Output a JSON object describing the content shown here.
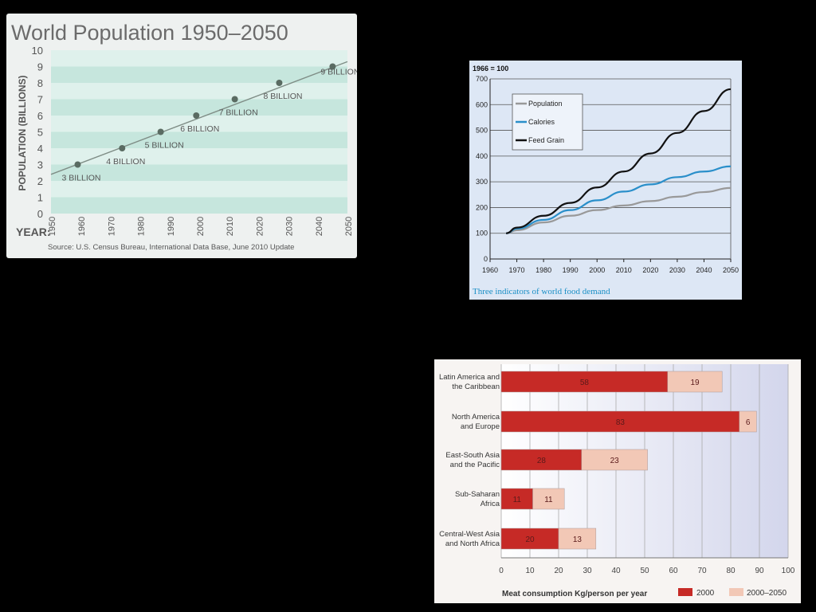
{
  "chart_data": [
    {
      "type": "line",
      "title": "World Population 1950–2050",
      "ylabel": "POPULATION (BILLIONS)",
      "xlabel": "YEAR:",
      "ylim": [
        0,
        10
      ],
      "xlim": [
        1950,
        2050
      ],
      "x_ticks": [
        "1950",
        "1960",
        "1970",
        "1980",
        "1990",
        "2000",
        "2010",
        "2020",
        "2030",
        "2040",
        "2050"
      ],
      "y_ticks": [
        "0",
        "1",
        "2",
        "3",
        "4",
        "5",
        "6",
        "7",
        "8",
        "9",
        "10"
      ],
      "series": [
        {
          "values_x": [
            1950,
            2050
          ],
          "values": [
            2.4,
            9.3
          ]
        }
      ],
      "points": [
        {
          "x": 1959,
          "y": 3,
          "label": "3 BILLION"
        },
        {
          "x": 1974,
          "y": 4,
          "label": "4 BILLION"
        },
        {
          "x": 1987,
          "y": 5,
          "label": "5 BILLION"
        },
        {
          "x": 1999,
          "y": 6,
          "label": "6 BILLION"
        },
        {
          "x": 2012,
          "y": 7,
          "label": "7 BILLION"
        },
        {
          "x": 2027,
          "y": 8,
          "label": "8 BILLION"
        },
        {
          "x": 2045,
          "y": 9,
          "label": "9 BILLION"
        }
      ],
      "source": "Source: U.S. Census Bureau, International Data Base, June 2010 Update",
      "colors": {
        "bg": "#eef1f0",
        "band_dark": "#c6e6dd",
        "band_light": "#dff1ec",
        "line": "#7f8d86",
        "dot": "#5a6b62",
        "text": "#555555"
      }
    },
    {
      "type": "line",
      "subtitle": "1966 = 100",
      "caption": "Three indicators of world food demand",
      "xlim": [
        1960,
        2050
      ],
      "ylim": [
        0,
        700
      ],
      "x_ticks": [
        "1960",
        "1970",
        "1980",
        "1990",
        "2000",
        "2010",
        "2020",
        "2030",
        "2040",
        "2050"
      ],
      "y_ticks": [
        "0",
        "100",
        "200",
        "300",
        "400",
        "500",
        "600",
        "700"
      ],
      "grid": true,
      "legend": "top-left",
      "series": [
        {
          "name": "Population",
          "color": "#999999",
          "x": [
            1966,
            1970,
            1980,
            1990,
            2000,
            2010,
            2020,
            2030,
            2040,
            2050
          ],
          "values": [
            100,
            112,
            142,
            168,
            190,
            208,
            225,
            242,
            260,
            276
          ]
        },
        {
          "name": "Calories",
          "color": "#2a8fca",
          "x": [
            1966,
            1970,
            1980,
            1990,
            2000,
            2010,
            2020,
            2030,
            2040,
            2050
          ],
          "values": [
            100,
            118,
            152,
            190,
            228,
            262,
            290,
            318,
            340,
            360
          ]
        },
        {
          "name": "Feed Grain",
          "color": "#111111",
          "x": [
            1966,
            1970,
            1980,
            1990,
            2000,
            2010,
            2020,
            2030,
            2040,
            2050
          ],
          "values": [
            100,
            122,
            168,
            218,
            278,
            340,
            410,
            490,
            575,
            660
          ]
        }
      ],
      "colors": {
        "bg": "#dde7f5",
        "caption": "#1a8fc6"
      }
    },
    {
      "type": "bar",
      "orientation": "horizontal",
      "stacked": true,
      "xlabel": "Meat consumption Kg/person per year",
      "xlim": [
        0,
        100
      ],
      "x_ticks": [
        "0",
        "10",
        "20",
        "30",
        "40",
        "50",
        "60",
        "70",
        "80",
        "90",
        "100"
      ],
      "categories": [
        "Latin America and\nthe Caribbean",
        "North America\nand Europe",
        "East-South Asia\nand the Pacific",
        "Sub-Saharan\nAfrica",
        "Central-West Asia\nand North Africa"
      ],
      "series": [
        {
          "name": "2000",
          "color": "#c62a26",
          "values": [
            58,
            83,
            28,
            11,
            20
          ]
        },
        {
          "name": "2000–2050",
          "color": "#f2c8b6",
          "values": [
            19,
            6,
            23,
            11,
            13
          ]
        }
      ],
      "legend": "bottom-right",
      "colors": {
        "bg": "#f7f4f2",
        "grid": "#aaaaaa"
      }
    }
  ]
}
